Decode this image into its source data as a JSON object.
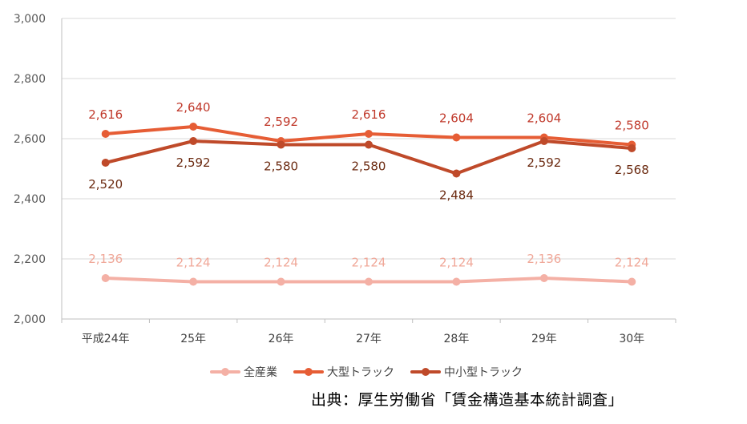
{
  "chart_data": {
    "type": "line",
    "categories": [
      "平成24年",
      "25年",
      "26年",
      "27年",
      "28年",
      "29年",
      "30年"
    ],
    "ylim": [
      2000,
      3000
    ],
    "yticks": [
      "2,000",
      "2,200",
      "2,400",
      "2,600",
      "2,800",
      "3,000"
    ],
    "ytick_values": [
      2000,
      2200,
      2400,
      2600,
      2800,
      3000
    ],
    "grid": true,
    "legend_position": "bottom",
    "series": [
      {
        "name": "全産業",
        "color": "#F4B0A5",
        "label_color": "#F0A899",
        "label_position": "above",
        "values": [
          2136,
          2124,
          2124,
          2124,
          2124,
          2136,
          2124
        ],
        "labels": [
          "2,136",
          "2,124",
          "2,124",
          "2,124",
          "2,124",
          "2,136",
          "2,124"
        ]
      },
      {
        "name": "大型トラック",
        "color": "#E65D35",
        "label_color": "#C0392B",
        "label_position": "above",
        "values": [
          2616,
          2640,
          2592,
          2616,
          2604,
          2604,
          2580
        ],
        "labels": [
          "2,616",
          "2,640",
          "2,592",
          "2,616",
          "2,604",
          "2,604",
          "2,580"
        ]
      },
      {
        "name": "中小型トラック",
        "color": "#BF4A2A",
        "label_color": "#6B2A10",
        "label_position": "below",
        "values": [
          2520,
          2592,
          2580,
          2580,
          2484,
          2592,
          2568
        ],
        "labels": [
          "2,520",
          "2,592",
          "2,580",
          "2,580",
          "2,484",
          "2,592",
          "2,568"
        ]
      }
    ]
  },
  "source_text": "出典：厚生労働省「賃金構造基本統計調査」"
}
